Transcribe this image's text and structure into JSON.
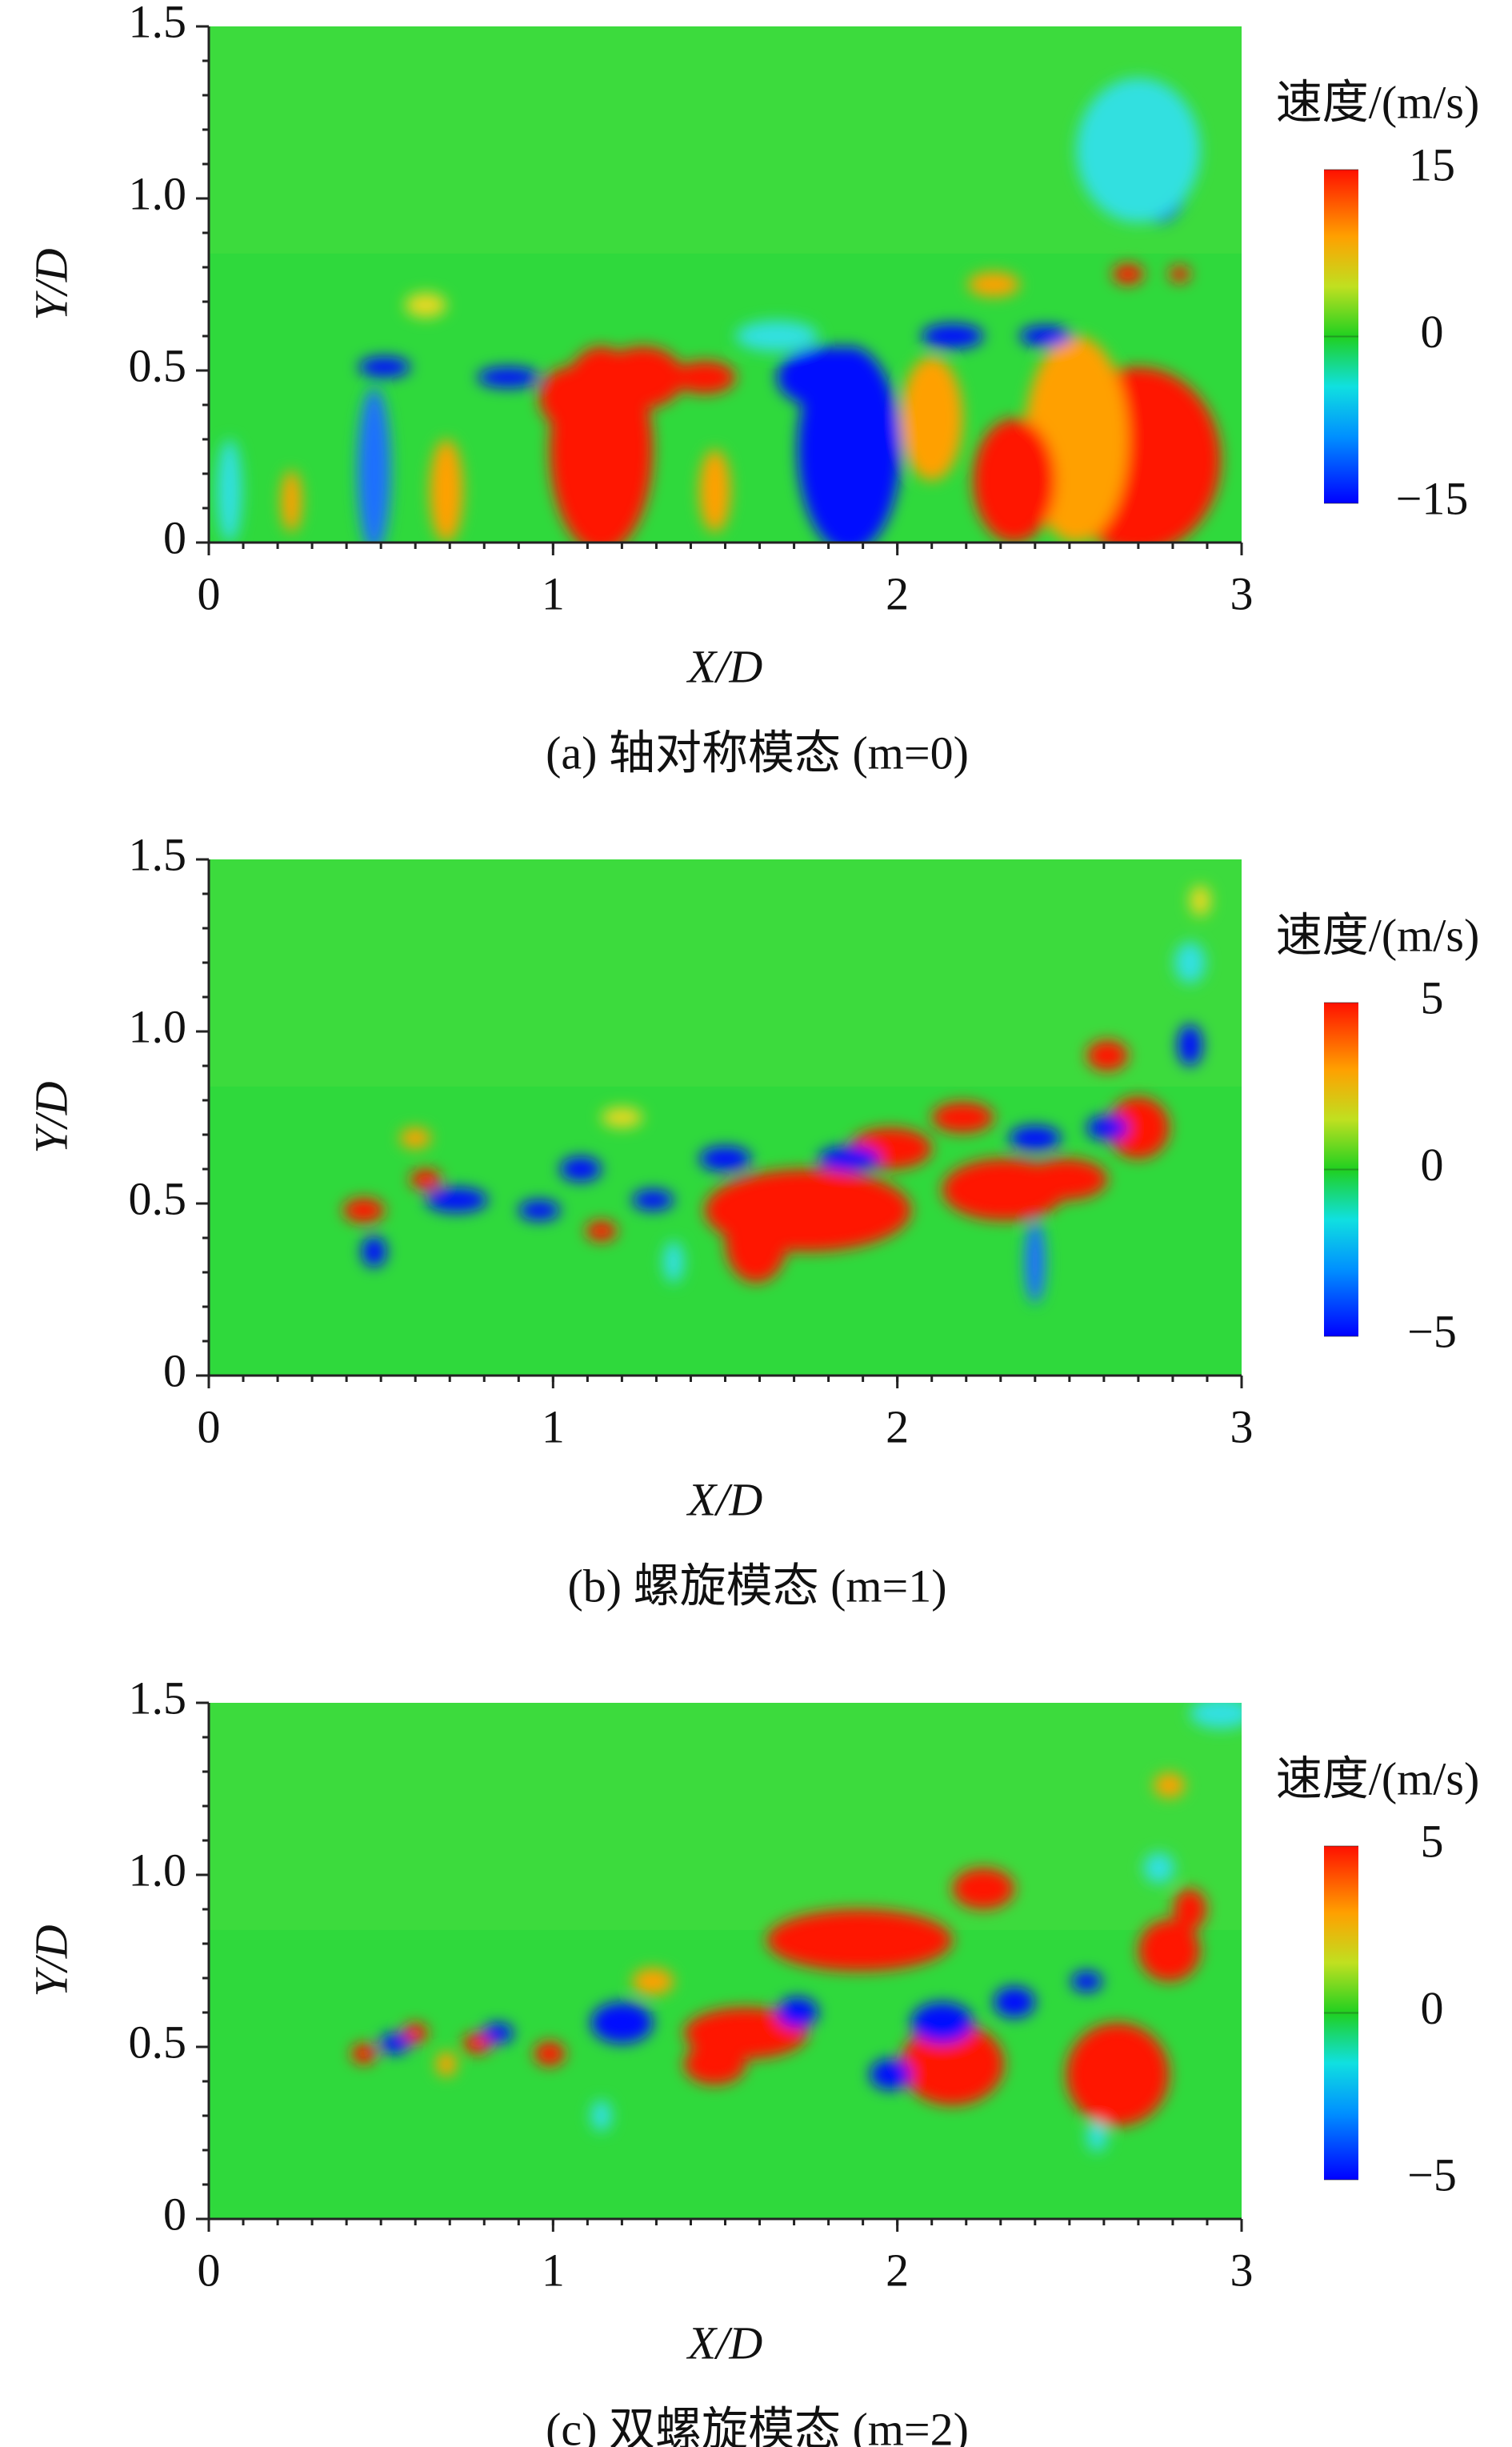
{
  "chart_data": [
    {
      "type": "contour",
      "caption": "(a) 轴对称模态 (m=0)",
      "x_label": "X/D",
      "y_label": "Y/D",
      "xlim": [
        0,
        3
      ],
      "xticks": [
        0,
        1,
        2,
        3
      ],
      "ylim": [
        0,
        1.5
      ],
      "yticks": [
        0,
        0.5,
        {
          "value": 1,
          "label": "1.0"
        },
        1.5
      ],
      "colorbar_title": "速度/(m/s)",
      "colorbar_lim": [
        -15,
        15
      ],
      "colorbar_ticks": [
        {
          "value": -15,
          "label": "−15"
        },
        0,
        15
      ]
    },
    {
      "type": "contour",
      "caption": "(b) 螺旋模态 (m=1)",
      "x_label": "X/D",
      "y_label": "Y/D",
      "xlim": [
        0,
        3
      ],
      "xticks": [
        0,
        1,
        2,
        3
      ],
      "ylim": [
        0,
        1.5
      ],
      "yticks": [
        0,
        0.5,
        {
          "value": 1,
          "label": "1.0"
        },
        1.5
      ],
      "colorbar_title": "速度/(m/s)",
      "colorbar_lim": [
        -5,
        5
      ],
      "colorbar_ticks": [
        {
          "value": -5,
          "label": "−5"
        },
        0,
        5
      ]
    },
    {
      "type": "contour",
      "caption": "(c) 双螺旋模态 (m=2)",
      "x_label": "X/D",
      "y_label": "Y/D",
      "xlim": [
        0,
        3
      ],
      "xticks": [
        0,
        1,
        2,
        3
      ],
      "ylim": [
        0,
        1.5
      ],
      "yticks": [
        0,
        0.5,
        {
          "value": 1,
          "label": "1.0"
        },
        1.5
      ],
      "colorbar_title": "速度/(m/s)",
      "colorbar_lim": [
        -5,
        5
      ],
      "colorbar_ticks": [
        {
          "value": -5,
          "label": "−5"
        },
        0,
        5
      ]
    }
  ]
}
